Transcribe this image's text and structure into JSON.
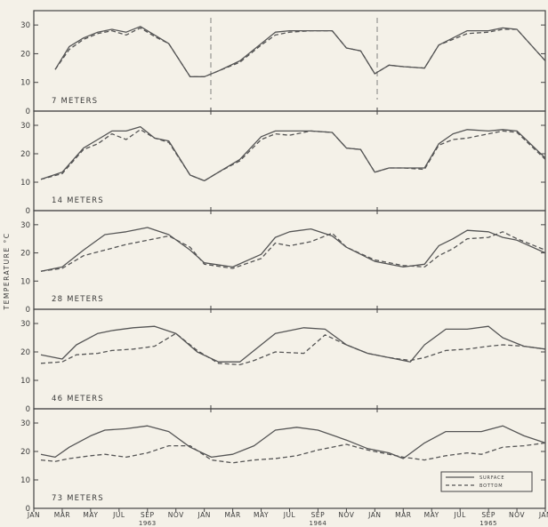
{
  "chart_data": {
    "type": "line",
    "ylabel": "TEMPERATURE °C",
    "y_ticks": [
      "0",
      "10",
      "20",
      "30"
    ],
    "ylim": [
      0,
      35
    ],
    "x_month_labels": [
      "JAN",
      "MAR",
      "MAY",
      "JUL",
      "SEP",
      "NOV",
      "JAN",
      "MAR",
      "MAY",
      "JUL",
      "SEP",
      "NOV",
      "JAN",
      "MAR",
      "MAY",
      "JUL",
      "SEP",
      "NOV",
      "JAN"
    ],
    "year_labels": [
      "1963",
      "1964",
      "1965"
    ],
    "legend": {
      "surface": "SURFACE",
      "bottom": "BOTTOM",
      "placement": "bottom-right of lowest panel"
    },
    "colors": {
      "line": "#555555",
      "frame": "#444444",
      "background": "#f4f1e8"
    },
    "panels": [
      {
        "label": "7 METERS",
        "series": [
          {
            "name": "SURFACE",
            "style": "solid",
            "x": [
              1.5,
              2.5,
              3.5,
              4.5,
              5.5,
              6.5,
              7.5,
              8.5,
              9.5,
              11,
              12,
              13,
              14.5,
              16,
              17,
              18,
              19.5,
              21,
              22,
              23,
              24,
              25,
              26,
              27.5,
              28.5,
              29.5,
              30.5,
              32,
              33,
              34,
              36
            ],
            "y": [
              14.5,
              22.5,
              25.5,
              27.5,
              28.5,
              27.5,
              29.5,
              26.5,
              23.5,
              12,
              12,
              14,
              17.5,
              23.5,
              27.5,
              28,
              28,
              28,
              22,
              21,
              13,
              16,
              15.5,
              15,
              23,
              25.5,
              28,
              28,
              29,
              28.5,
              17.5
            ]
          },
          {
            "name": "BOTTOM",
            "style": "dashed",
            "x": [
              1.5,
              2.5,
              3.5,
              4.5,
              5.5,
              6.5,
              7.5,
              8.5,
              9.5,
              11,
              12,
              13,
              14.5,
              16,
              17,
              18,
              19.5,
              21,
              22,
              23,
              24,
              25,
              26,
              27.5,
              28.5,
              29.5,
              30.5,
              32,
              33,
              34,
              36
            ],
            "y": [
              14.5,
              21.5,
              25,
              27,
              28,
              26.5,
              29,
              26,
              23.5,
              12,
              12,
              14,
              17,
              23,
              26.5,
              27.5,
              28,
              28,
              22,
              21,
              13,
              16,
              15.5,
              15,
              23,
              25,
              27,
              27.5,
              28.5,
              28.5,
              17.5
            ]
          }
        ]
      },
      {
        "label": "14 METERS",
        "series": [
          {
            "name": "SURFACE",
            "style": "solid",
            "x": [
              0.5,
              2,
              3.5,
              4.5,
              5.5,
              6.5,
              7.5,
              8.5,
              9.5,
              11,
              12,
              13,
              14.5,
              16,
              17,
              18,
              19.5,
              21,
              22,
              23,
              24,
              25,
              26,
              27.5,
              28.5,
              29.5,
              30.5,
              32,
              33,
              34,
              36
            ],
            "y": [
              11,
              13.5,
              22,
              25,
              28,
              28,
              29.5,
              25.5,
              24.5,
              12.5,
              10.5,
              13.5,
              18,
              26,
              28,
              28,
              28,
              27.5,
              22,
              21.5,
              13.5,
              15,
              15,
              15,
              23.5,
              27,
              28.5,
              28,
              28.5,
              28,
              18.5
            ]
          },
          {
            "name": "BOTTOM",
            "style": "dashed",
            "x": [
              0.5,
              2,
              3.5,
              4.5,
              5.5,
              6.5,
              7.5,
              8.5,
              9.5,
              11,
              12,
              13,
              14.5,
              16,
              17,
              18,
              19.5,
              21,
              22,
              23,
              24,
              25,
              26,
              27.5,
              28.5,
              29.5,
              30.5,
              32,
              33,
              34,
              36
            ],
            "y": [
              11,
              13,
              21.5,
              23.5,
              27,
              25,
              28.5,
              25.5,
              24,
              12.5,
              10.5,
              13.5,
              17.5,
              25,
              27,
              26.5,
              28,
              27.5,
              22,
              21.5,
              13.5,
              15,
              15,
              14.5,
              23,
              25,
              25.5,
              27,
              28,
              27.5,
              18
            ]
          }
        ]
      },
      {
        "label": "28 METERS",
        "series": [
          {
            "name": "SURFACE",
            "style": "solid",
            "x": [
              0.5,
              2,
              3.5,
              5,
              6.5,
              8,
              9.5,
              11,
              12,
              14,
              16,
              17,
              18,
              19.5,
              21,
              22,
              24,
              26,
              27.5,
              28.5,
              29.5,
              30.5,
              32,
              33,
              34,
              36
            ],
            "y": [
              13.5,
              15,
              21,
              26.5,
              27.5,
              29,
              26.5,
              21,
              16.5,
              15,
              19.5,
              25.5,
              27.5,
              28.5,
              26,
              22,
              17,
              15,
              16,
              22.5,
              25,
              28,
              27.5,
              25.5,
              24.5,
              20
            ]
          },
          {
            "name": "BOTTOM",
            "style": "dashed",
            "x": [
              0.5,
              2,
              3.5,
              5,
              6.5,
              8,
              9.5,
              11,
              12,
              14,
              16,
              17,
              18,
              19.5,
              21,
              22,
              24,
              26,
              27.5,
              28.5,
              29.5,
              30.5,
              32,
              33,
              34,
              36
            ],
            "y": [
              13.5,
              14.5,
              19,
              21,
              23,
              24.5,
              26,
              22,
              16,
              14.5,
              18,
              23.5,
              22.5,
              24,
              27,
              22,
              17.5,
              15.5,
              15,
              19,
              21.5,
              25,
              25.5,
              27.5,
              25,
              21
            ]
          }
        ]
      },
      {
        "label": "46 METERS",
        "series": [
          {
            "name": "SURFACE",
            "style": "solid",
            "x": [
              0.5,
              2,
              3,
              4.5,
              5.5,
              7,
              8.5,
              10,
              11.5,
              13,
              14.5,
              15.5,
              17,
              19,
              20.5,
              22,
              23.5,
              25,
              26.5,
              27.5,
              29,
              30.5,
              32,
              33,
              34.5,
              36
            ],
            "y": [
              19,
              17.5,
              22.5,
              26.5,
              27.5,
              28.5,
              29,
              26.5,
              20,
              16.5,
              16.5,
              20.5,
              26.5,
              28.5,
              28,
              22.5,
              19.5,
              18,
              16.5,
              22.5,
              28,
              28,
              29,
              25,
              22,
              21
            ]
          },
          {
            "name": "BOTTOM",
            "style": "dashed",
            "x": [
              0.5,
              2,
              3,
              4.5,
              5.5,
              7,
              8.5,
              10,
              11.5,
              13,
              14.5,
              15.5,
              17,
              19,
              20.5,
              22,
              23.5,
              25,
              26.5,
              27.5,
              29,
              30.5,
              32,
              33,
              34.5,
              36
            ],
            "y": [
              16,
              16.5,
              19,
              19.5,
              20.5,
              21,
              22,
              26.5,
              20.5,
              16,
              15.5,
              17,
              20,
              19.5,
              26,
              22.5,
              19.5,
              18,
              17,
              18,
              20.5,
              21,
              22,
              22.5,
              22,
              21
            ]
          }
        ]
      },
      {
        "label": "73 METERS",
        "series": [
          {
            "name": "SURFACE",
            "style": "solid",
            "x": [
              0.5,
              1.5,
              2.5,
              4,
              5,
              6.5,
              8,
              9.5,
              11,
              12.5,
              14,
              15.5,
              17,
              18.5,
              20,
              22,
              23.5,
              25,
              26,
              27.5,
              29,
              30.5,
              31.5,
              33,
              34.5,
              36
            ],
            "y": [
              19,
              18,
              21.5,
              25.5,
              27.5,
              28,
              29,
              27,
              21.5,
              18,
              19,
              22,
              27.5,
              28.5,
              27.5,
              24,
              21,
              19.5,
              17.5,
              23,
              27,
              27,
              27,
              29,
              25.5,
              23
            ]
          },
          {
            "name": "BOTTOM",
            "style": "dashed",
            "x": [
              0.5,
              1.5,
              2.5,
              4,
              5,
              6.5,
              8,
              9.5,
              11,
              12.5,
              14,
              15.5,
              17,
              18.5,
              20,
              22,
              23.5,
              25,
              26,
              27.5,
              29,
              30.5,
              31.5,
              33,
              34.5,
              36
            ],
            "y": [
              17,
              16.5,
              17.5,
              18.5,
              19,
              18,
              19.5,
              22,
              22,
              17,
              16,
              17,
              17.5,
              18.5,
              20.5,
              22.5,
              20.5,
              19,
              18,
              17,
              18.5,
              19.5,
              19,
              21.5,
              22,
              23
            ]
          }
        ]
      }
    ]
  }
}
